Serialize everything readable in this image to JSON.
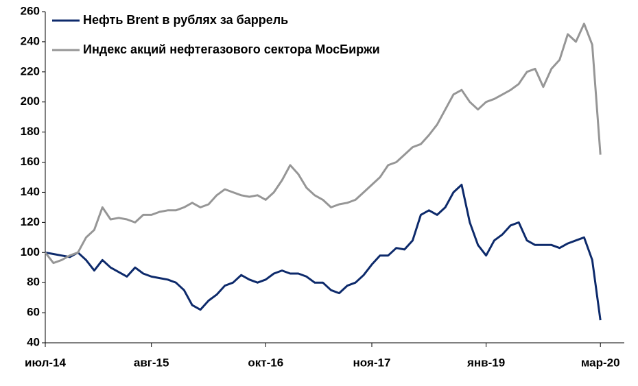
{
  "chart_data": {
    "type": "line",
    "categories": [
      "июл-14",
      null,
      null,
      null,
      null,
      null,
      null,
      null,
      null,
      null,
      null,
      null,
      null,
      "авг-15",
      null,
      null,
      null,
      null,
      null,
      null,
      null,
      null,
      null,
      null,
      null,
      null,
      null,
      "окт-16",
      null,
      null,
      null,
      null,
      null,
      null,
      null,
      null,
      null,
      null,
      null,
      null,
      "ноя-17",
      null,
      null,
      null,
      null,
      null,
      null,
      null,
      null,
      null,
      null,
      null,
      null,
      null,
      "янв-19",
      null,
      null,
      null,
      null,
      null,
      null,
      null,
      null,
      null,
      null,
      null,
      null,
      null,
      "мар-20"
    ],
    "series": [
      {
        "name": "Нефть Brent в рублях за баррель",
        "color": "#0d2a6b",
        "values": [
          100,
          99,
          98,
          97,
          100,
          95,
          88,
          95,
          90,
          87,
          84,
          90,
          86,
          84,
          83,
          82,
          80,
          75,
          65,
          62,
          68,
          72,
          78,
          80,
          85,
          82,
          80,
          82,
          86,
          88,
          86,
          86,
          84,
          80,
          80,
          75,
          73,
          78,
          80,
          85,
          92,
          98,
          98,
          103,
          102,
          108,
          125,
          128,
          125,
          130,
          140,
          145,
          120,
          105,
          98,
          108,
          112,
          118,
          120,
          108,
          105,
          105,
          105,
          103,
          106,
          108,
          110,
          95,
          55
        ]
      },
      {
        "name": "Индекс акций нефтегазового сектора МосБиржи",
        "color": "#969696",
        "values": [
          100,
          93,
          95,
          98,
          100,
          110,
          115,
          130,
          122,
          123,
          122,
          120,
          125,
          125,
          127,
          128,
          128,
          130,
          133,
          130,
          132,
          138,
          142,
          140,
          138,
          137,
          138,
          135,
          140,
          148,
          158,
          152,
          143,
          138,
          135,
          130,
          132,
          133,
          135,
          140,
          145,
          150,
          158,
          160,
          165,
          170,
          172,
          178,
          185,
          195,
          205,
          208,
          200,
          195,
          200,
          202,
          205,
          208,
          212,
          220,
          222,
          210,
          222,
          228,
          245,
          240,
          252,
          238,
          165
        ]
      }
    ],
    "ylim": [
      40,
      260
    ],
    "yticks": [
      40,
      60,
      80,
      100,
      120,
      140,
      160,
      180,
      200,
      220,
      240,
      260
    ],
    "legend": "upper left"
  }
}
